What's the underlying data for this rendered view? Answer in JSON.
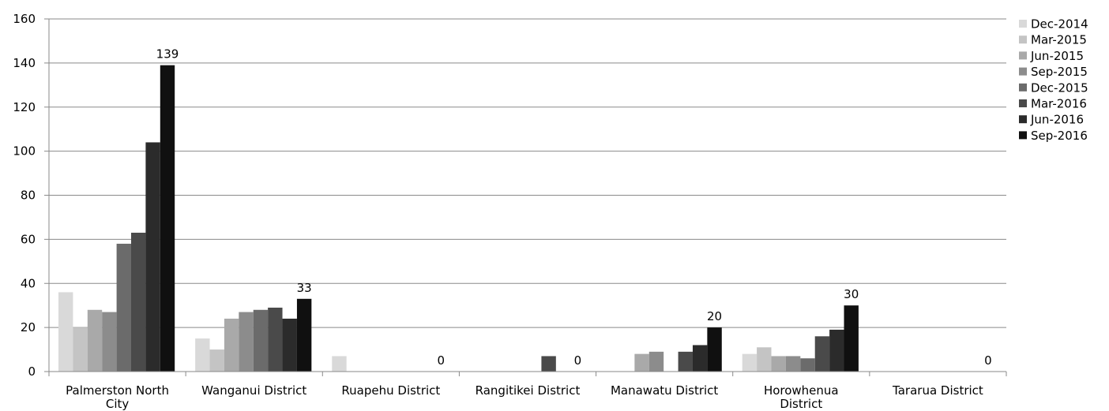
{
  "chart_data": {
    "type": "bar",
    "title": "",
    "xlabel": "",
    "ylabel": "",
    "ylim": [
      0,
      160
    ],
    "yticks": [
      0,
      20,
      40,
      60,
      80,
      100,
      120,
      140,
      160
    ],
    "grid": true,
    "legend_position": "right",
    "categories": [
      [
        "Palmerston North",
        "City"
      ],
      [
        "Wanganui District"
      ],
      [
        "Ruapehu District"
      ],
      [
        "Rangitikei District"
      ],
      [
        "Manawatu District"
      ],
      [
        "Horowhenua",
        "District"
      ],
      [
        "Tararua District"
      ]
    ],
    "series": [
      {
        "name": "Dec-2014",
        "color": "#d9d9d9",
        "values": [
          36,
          15,
          7,
          0,
          0,
          8,
          0
        ]
      },
      {
        "name": "Mar-2015",
        "color": "#c4c4c4",
        "values": [
          20,
          10,
          0,
          0,
          0,
          11,
          0
        ]
      },
      {
        "name": "Jun-2015",
        "color": "#a9a9a9",
        "values": [
          28,
          24,
          0,
          0,
          8,
          7,
          0
        ]
      },
      {
        "name": "Sep-2015",
        "color": "#8c8c8c",
        "values": [
          27,
          27,
          0,
          0,
          9,
          7,
          0
        ]
      },
      {
        "name": "Dec-2015",
        "color": "#6b6b6b",
        "values": [
          58,
          28,
          0,
          0,
          0,
          6,
          0
        ]
      },
      {
        "name": "Mar-2016",
        "color": "#4a4a4a",
        "values": [
          63,
          29,
          0,
          7,
          9,
          16,
          0
        ]
      },
      {
        "name": "Jun-2016",
        "color": "#2b2b2b",
        "values": [
          104,
          24,
          0,
          0,
          12,
          19,
          0
        ]
      },
      {
        "name": "Sep-2016",
        "color": "#101010",
        "values": [
          139,
          33,
          0,
          0,
          20,
          30,
          0
        ]
      }
    ],
    "data_labels": {
      "series": "Sep-2016",
      "values": [
        "139",
        "33",
        "0",
        "0",
        "20",
        "30",
        "0"
      ]
    }
  }
}
